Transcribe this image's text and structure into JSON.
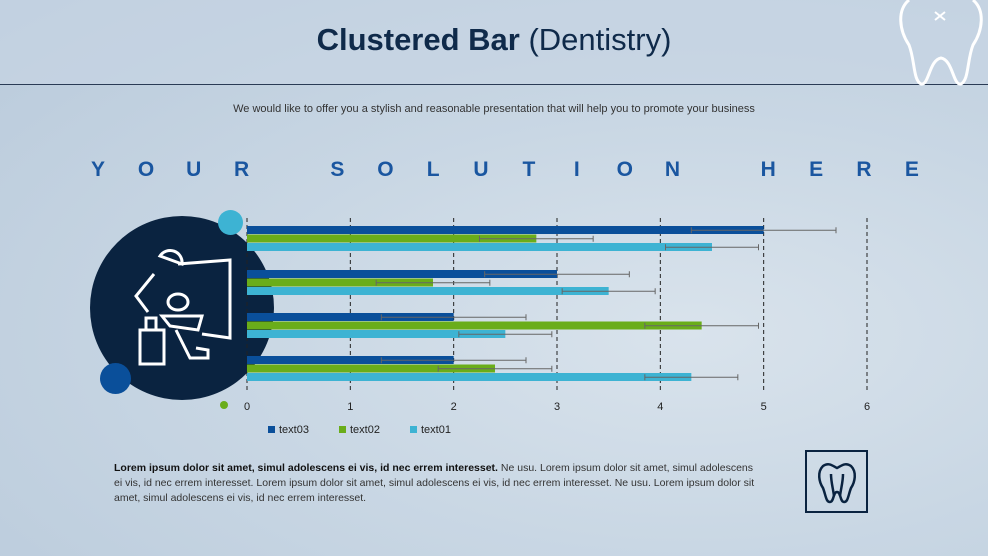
{
  "title": {
    "bold": "Clustered Bar",
    "rest": " (Dentistry)"
  },
  "subtitle": "We would like to offer you a stylish and reasonable presentation that will help you to promote your business",
  "solution_letters": [
    "Y",
    "O",
    "U",
    "R",
    " ",
    "S",
    "O",
    "L",
    "U",
    "T",
    "I",
    "O",
    "N",
    " ",
    "H",
    "E",
    "R",
    "E"
  ],
  "body": {
    "bold": "Lorem ipsum dolor sit amet, simul adolescens ei vis, id nec errem interesset.",
    "rest": " Ne usu. Lorem ipsum dolor sit amet, simul adolescens ei vis, id nec errem interesset. Lorem ipsum dolor sit amet, simul adolescens ei vis, id nec errem interesset. Ne usu. Lorem ipsum dolor sit amet, simul adolescens ei vis, id nec errem interesset."
  },
  "icons": {
    "top_right": "tooth-icon",
    "circle": "dentist-chair-icon",
    "bottom_right": "tooth-document-icon"
  },
  "chart_data": {
    "type": "bar",
    "orientation": "horizontal",
    "grid": "vertical dashed",
    "legend": "bottom-left",
    "error_bars": true,
    "xlim": [
      0,
      6
    ],
    "xticks": [
      "0",
      "1",
      "2",
      "3",
      "4",
      "5",
      "6"
    ],
    "groups": 4,
    "series": [
      {
        "name": "text03",
        "color": "#0a4f9a",
        "values": [
          5,
          3,
          2,
          2
        ],
        "error": [
          0.7,
          0.7,
          0.7,
          0.7
        ]
      },
      {
        "name": "text02",
        "color": "#6aad1a",
        "values": [
          2.8,
          1.8,
          4.4,
          2.4
        ],
        "error": [
          0.55,
          0.55,
          0.55,
          0.55
        ]
      },
      {
        "name": "text01",
        "color": "#3db3d3",
        "values": [
          4.5,
          3.5,
          2.5,
          4.3
        ],
        "error": [
          0.45,
          0.45,
          0.45,
          0.45
        ]
      }
    ]
  }
}
